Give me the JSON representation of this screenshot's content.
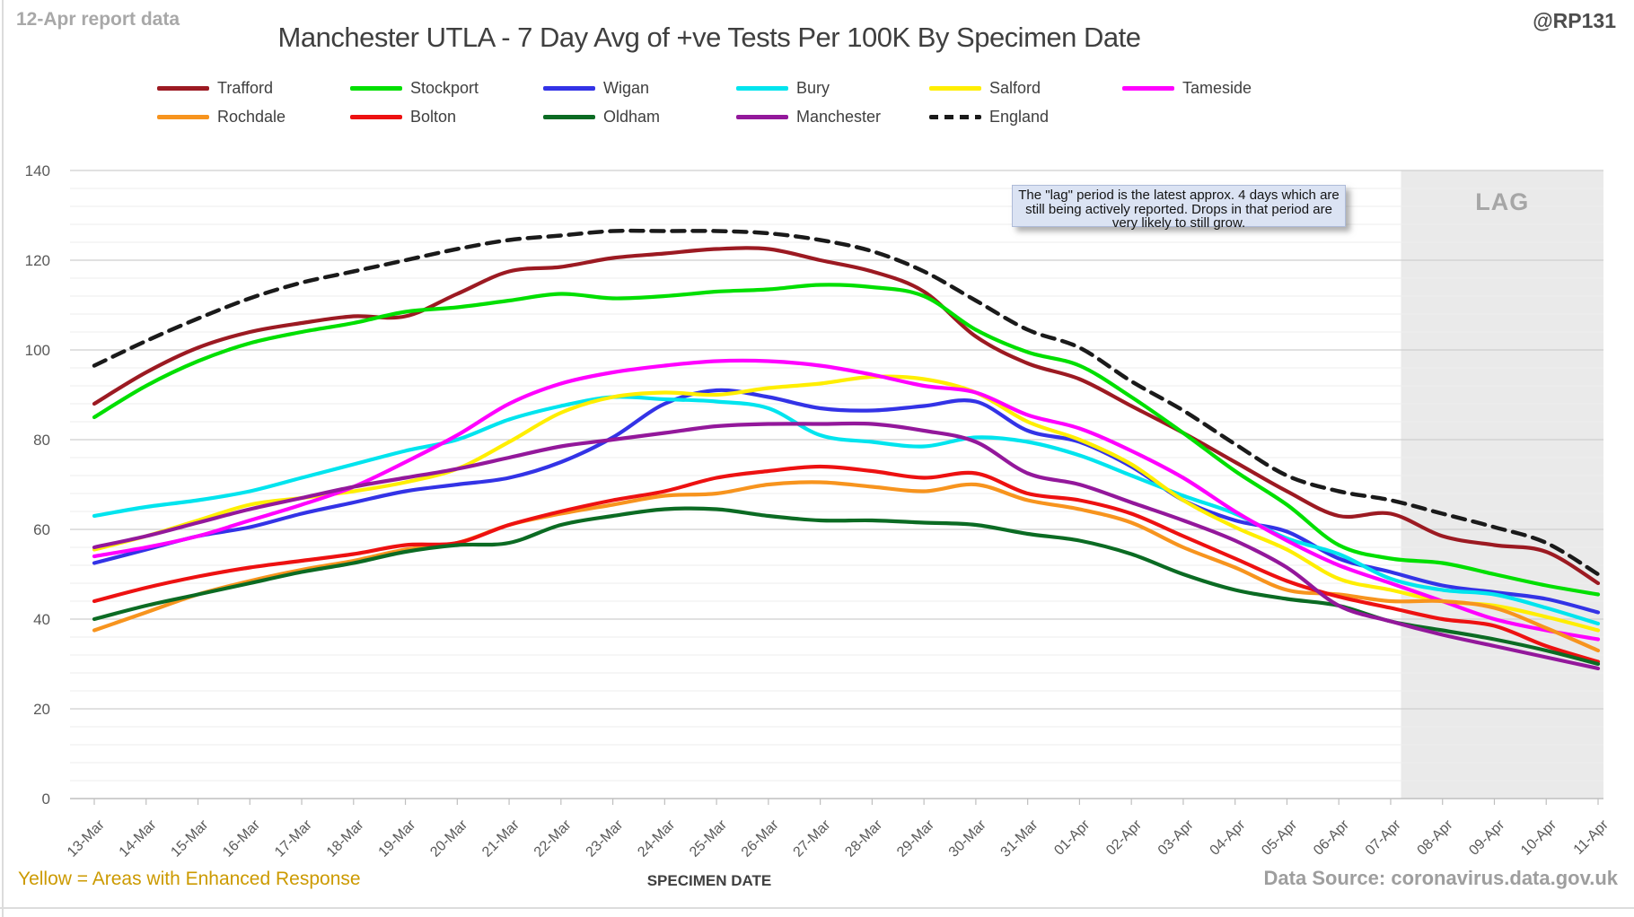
{
  "header": {
    "report_note": "12-Apr report data",
    "title": "Manchester UTLA - 7 Day Avg of +ve Tests Per 100K By Specimen Date",
    "handle": "@RP131"
  },
  "annotation": {
    "text": "The \"lag\" period is the latest approx. 4 days which are still being actively reported. Drops in that period are very likely to still grow."
  },
  "footer": {
    "note": "Yellow = Areas with Enhanced Response",
    "xlabel": "SPECIMEN DATE",
    "source": "Data Source: coronavirus.data.gov.uk"
  },
  "chart_data": {
    "type": "line",
    "title": "Manchester UTLA - 7 Day Avg of +ve Tests Per 100K By Specimen Date",
    "xlabel": "SPECIMEN DATE",
    "ylabel": "",
    "ylim": [
      0,
      140
    ],
    "ytick_step": 20,
    "yminor_step": 4,
    "grid": true,
    "lag_label": "LAG",
    "lag_start_x": 25.2,
    "legend_position": "top",
    "legend_rows": [
      [
        "Trafford",
        "Stockport",
        "Wigan",
        "Bury",
        "Salford",
        "Tameside"
      ],
      [
        "Rochdale",
        "Bolton",
        "Oldham",
        "Manchester",
        "England"
      ]
    ],
    "x": [
      "13-Mar",
      "14-Mar",
      "15-Mar",
      "16-Mar",
      "17-Mar",
      "18-Mar",
      "19-Mar",
      "20-Mar",
      "21-Mar",
      "22-Mar",
      "23-Mar",
      "24-Mar",
      "25-Mar",
      "26-Mar",
      "27-Mar",
      "28-Mar",
      "29-Mar",
      "30-Mar",
      "31-Mar",
      "01-Apr",
      "02-Apr",
      "03-Apr",
      "04-Apr",
      "05-Apr",
      "06-Apr",
      "07-Apr",
      "08-Apr",
      "09-Apr",
      "10-Apr",
      "11-Apr"
    ],
    "series": [
      {
        "name": "Trafford",
        "color": "#9c1a22",
        "dashed": false,
        "values": [
          88,
          95,
          100.5,
          104,
          106,
          107.5,
          107.5,
          112.5,
          117.5,
          118.5,
          120.5,
          121.5,
          122.5,
          122.5,
          120,
          117.5,
          113,
          103,
          97,
          93.5,
          87.5,
          81.5,
          75,
          68.5,
          63,
          63.5,
          58.5,
          56.5,
          55,
          48
        ]
      },
      {
        "name": "Stockport",
        "color": "#00df00",
        "dashed": false,
        "values": [
          85,
          92,
          97.5,
          101.5,
          104,
          106,
          108.5,
          109.5,
          111,
          112.5,
          111.5,
          112,
          113,
          113.5,
          114.5,
          114,
          112,
          104.5,
          99.5,
          96.5,
          89.5,
          81.5,
          73,
          65.5,
          56.5,
          53.5,
          52.5,
          50,
          47.5,
          45.5
        ]
      },
      {
        "name": "Wigan",
        "color": "#3333e6",
        "dashed": false,
        "values": [
          52.5,
          55.5,
          58.5,
          60.5,
          63.5,
          66,
          68.5,
          70,
          71.5,
          75,
          80.5,
          88,
          91,
          89.5,
          87,
          86.5,
          87.5,
          88.5,
          82,
          79.5,
          74,
          66.5,
          62,
          59.5,
          53.5,
          50.5,
          47.5,
          46,
          44.5,
          41.5
        ]
      },
      {
        "name": "Bury",
        "color": "#00e4ee",
        "dashed": false,
        "values": [
          63,
          65,
          66.5,
          68.5,
          71.5,
          74.5,
          77.5,
          80,
          84.5,
          87.5,
          89.5,
          89,
          88.5,
          87,
          81,
          79.5,
          78.5,
          80.5,
          79.5,
          76.5,
          72,
          67.5,
          63.5,
          58,
          54.5,
          49,
          46.5,
          45.5,
          42.5,
          39
        ]
      },
      {
        "name": "Salford",
        "color": "#ffee00",
        "dashed": false,
        "values": [
          55.5,
          58.5,
          62,
          65.5,
          67,
          68.5,
          70.5,
          73.5,
          79.5,
          86,
          89.5,
          90.5,
          90,
          91.5,
          92.5,
          94,
          93.5,
          90.5,
          84,
          80,
          74.5,
          66.5,
          60.5,
          55.5,
          49,
          46.5,
          44,
          43,
          40.5,
          37.5
        ]
      },
      {
        "name": "Tameside",
        "color": "#ff00ff",
        "dashed": false,
        "values": [
          54,
          56,
          58.5,
          62,
          65.5,
          69.5,
          75,
          81,
          88,
          92.5,
          95,
          96.5,
          97.5,
          97.5,
          96.5,
          94.5,
          92,
          90.5,
          85.5,
          82.5,
          77.5,
          71.5,
          64,
          57.5,
          52,
          48,
          44,
          40,
          37.5,
          35.5
        ]
      },
      {
        "name": "Rochdale",
        "color": "#f7941e",
        "dashed": false,
        "values": [
          37.5,
          41.5,
          45.5,
          48.5,
          51,
          53,
          55.5,
          57,
          61,
          63.5,
          65.5,
          67.5,
          68,
          70,
          70.5,
          69.5,
          68.5,
          70,
          66.5,
          64.5,
          61.5,
          56,
          51.5,
          46.5,
          45.5,
          44,
          44,
          42.5,
          38,
          33
        ]
      },
      {
        "name": "Bolton",
        "color": "#ed1111",
        "dashed": false,
        "values": [
          44,
          47,
          49.5,
          51.5,
          53,
          54.5,
          56.5,
          57,
          61,
          64,
          66.5,
          68.5,
          71.5,
          73,
          74,
          73,
          71.5,
          72.5,
          68,
          66.5,
          63.5,
          58.5,
          53.5,
          48.5,
          45,
          42.5,
          40,
          38.5,
          34,
          30.5
        ]
      },
      {
        "name": "Oldham",
        "color": "#0b6b23",
        "dashed": false,
        "values": [
          40,
          43,
          45.5,
          48,
          50.5,
          52.5,
          55,
          56.5,
          57,
          61,
          63,
          64.5,
          64.5,
          63,
          62,
          62,
          61.5,
          61,
          59,
          57.5,
          54.5,
          50,
          46.5,
          44.5,
          43,
          39.5,
          37.5,
          35.5,
          33,
          30
        ]
      },
      {
        "name": "Manchester",
        "color": "#93189b",
        "dashed": false,
        "values": [
          56,
          58.5,
          61.5,
          64.5,
          67,
          69.5,
          71.5,
          73.5,
          76,
          78.5,
          80,
          81.5,
          83,
          83.5,
          83.5,
          83.5,
          82,
          79.5,
          72.5,
          70,
          66,
          62,
          57.5,
          51.5,
          43,
          39.5,
          36.5,
          34,
          31.5,
          29
        ]
      },
      {
        "name": "England",
        "color": "#1a1a1a",
        "dashed": true,
        "values": [
          96.5,
          102,
          107,
          111.5,
          115,
          117.5,
          120,
          122.5,
          124.5,
          125.5,
          126.5,
          126.5,
          126.5,
          126,
          124.5,
          122,
          117.5,
          111,
          104.5,
          100.5,
          93,
          86.5,
          79,
          72,
          68.5,
          66.5,
          63.5,
          60.5,
          57,
          50
        ]
      }
    ],
    "colors": {
      "grid_major": "#cfcfcf",
      "grid_minor": "#ededed",
      "axis": "#bfbfbf",
      "tick_label": "#595959",
      "lag_fill": "#eaeaea",
      "lag_text": "#a6a6a6"
    }
  }
}
